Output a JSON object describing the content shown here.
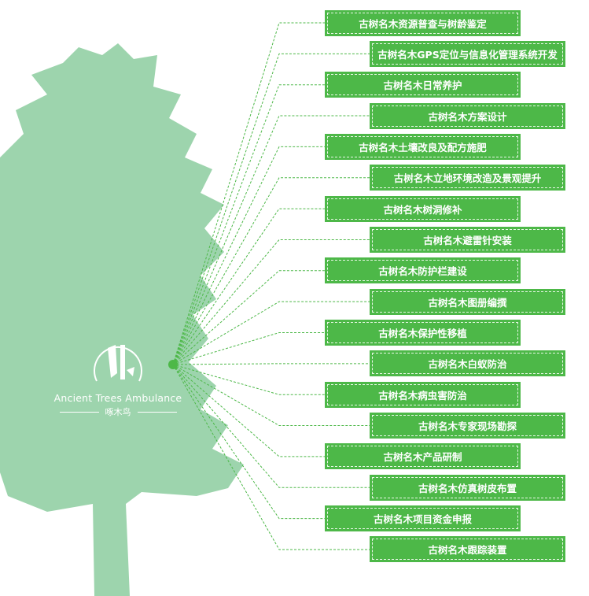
{
  "logo": {
    "name_en": "Ancient Trees Ambulance",
    "name_cn": "啄木鸟"
  },
  "colors": {
    "box": "#4db848",
    "tree": "#9dd4ad",
    "connector": "#4db848"
  },
  "services": [
    "古树名木资源普查与树龄鉴定",
    "古树名木GPS定位与信息化管理系统开发",
    "古树名木日常养护",
    "古树名木方案设计",
    "古树名木土壤改良及配方施肥",
    "古树名木立地环境改造及景观提升",
    "古树名木树洞修补",
    "古树名木避雷针安装",
    "古树名木防护栏建设",
    "古树名木图册编撰",
    "古树名木保护性移植",
    "古树名木白蚁防治",
    "古树名木病虫害防治",
    "古树名木专家现场勘探",
    "古树名木产品研制",
    "古树名木仿真树皮布置",
    "古树名木项目资金申报",
    "古树名木跟踪装置"
  ]
}
